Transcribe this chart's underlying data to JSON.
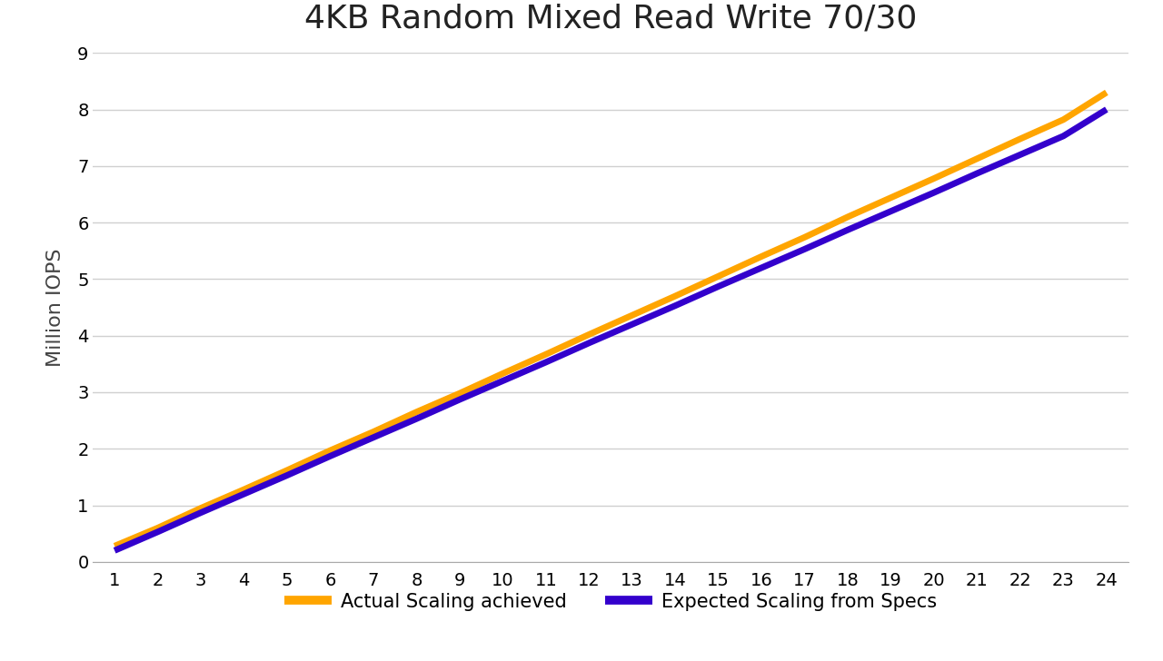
{
  "title": "4KB Random Mixed Read Write 70/30",
  "ylabel": "Million IOPS",
  "xlabel": "",
  "x_values": [
    1,
    2,
    3,
    4,
    5,
    6,
    7,
    8,
    9,
    10,
    11,
    12,
    13,
    14,
    15,
    16,
    17,
    18,
    19,
    20,
    21,
    22,
    23,
    24
  ],
  "expected_values": [
    0.2,
    0.53,
    0.87,
    1.2,
    1.53,
    1.87,
    2.2,
    2.53,
    2.87,
    3.2,
    3.53,
    3.87,
    4.2,
    4.53,
    4.87,
    5.2,
    5.53,
    5.87,
    6.2,
    6.53,
    6.87,
    7.2,
    7.53,
    8.0
  ],
  "actual_values": [
    0.28,
    0.6,
    0.95,
    1.28,
    1.62,
    1.97,
    2.3,
    2.65,
    2.98,
    3.33,
    3.67,
    4.02,
    4.36,
    4.7,
    5.05,
    5.4,
    5.74,
    6.1,
    6.44,
    6.78,
    7.13,
    7.48,
    7.82,
    8.3
  ],
  "expected_color": "#3300CC",
  "actual_color": "#FFA500",
  "ylim": [
    0,
    9
  ],
  "xlim_min": 0.5,
  "xlim_max": 24.5,
  "yticks": [
    0,
    1,
    2,
    3,
    4,
    5,
    6,
    7,
    8,
    9
  ],
  "xticks": [
    1,
    2,
    3,
    4,
    5,
    6,
    7,
    8,
    9,
    10,
    11,
    12,
    13,
    14,
    15,
    16,
    17,
    18,
    19,
    20,
    21,
    22,
    23,
    24
  ],
  "title_fontsize": 26,
  "axis_label_fontsize": 16,
  "tick_fontsize": 14,
  "legend_fontsize": 15,
  "line_width": 5,
  "background_color": "#ffffff",
  "grid_color": "#d0d0d0",
  "legend_label_expected": "Expected Scaling from Specs",
  "legend_label_actual": "Actual Scaling achieved"
}
